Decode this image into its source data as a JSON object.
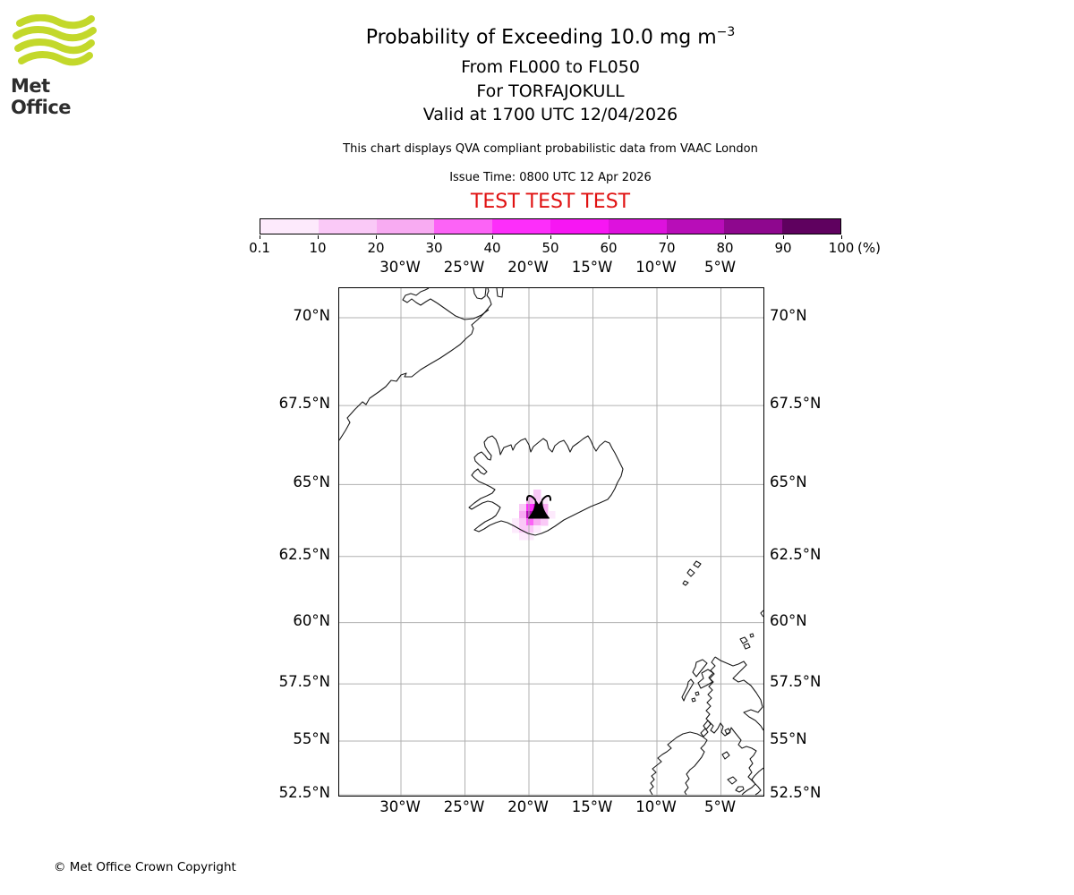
{
  "logo": {
    "brand": "Met Office",
    "green": "#c3d82b"
  },
  "header": {
    "title_main": "Probability of Exceeding 10.0 mg m",
    "title_sup": "−3",
    "sub1": "From FL000 to FL050",
    "sub2": "For TORFAJOKULL",
    "sub3": "Valid at 1700 UTC 12/04/2026",
    "note": "This chart displays QVA compliant probabilistic data from VAAC London",
    "issue_time": "Issue Time: 0800 UTC 12 Apr 2026",
    "test_banner": "TEST TEST TEST",
    "test_color": "#e01212"
  },
  "footer": {
    "copyright": "© Met Office Crown Copyright"
  },
  "chart_data": {
    "type": "heatmap",
    "title": "Probability of Exceeding 10.0 mg m-3",
    "subtitle": [
      "From FL000 to FL050",
      "For TORFAJOKULL",
      "Valid at 1700 UTC 12/04/2026"
    ],
    "legend_position": "top",
    "grid": "on",
    "colorbar": {
      "unit": "(%)",
      "ticks": [
        "0.1",
        "10",
        "20",
        "30",
        "40",
        "50",
        "60",
        "70",
        "80",
        "90",
        "100"
      ],
      "colors": [
        "#fdeafc",
        "#fac9f7",
        "#f8abf2",
        "#fc63f6",
        "#fd2efa",
        "#f716f3",
        "#dd12dd",
        "#b80db8",
        "#8e078e",
        "#5f015f"
      ]
    },
    "map": {
      "projection": "mercator",
      "lon_ticks": [
        {
          "label": "30°W",
          "value": -30
        },
        {
          "label": "25°W",
          "value": -25
        },
        {
          "label": "20°W",
          "value": -20
        },
        {
          "label": "15°W",
          "value": -15
        },
        {
          "label": "10°W",
          "value": -10
        },
        {
          "label": "5°W",
          "value": -5
        }
      ],
      "lat_ticks": [
        {
          "label": "70°N",
          "value": 70
        },
        {
          "label": "67.5°N",
          "value": 67.5
        },
        {
          "label": "65°N",
          "value": 65
        },
        {
          "label": "62.5°N",
          "value": 62.5
        },
        {
          "label": "60°N",
          "value": 60
        },
        {
          "label": "57.5°N",
          "value": 57.5
        },
        {
          "label": "55°N",
          "value": 55
        },
        {
          "label": "52.5°N",
          "value": 52.5
        }
      ],
      "gridline_color": "#b0b0b0"
    },
    "volcano": {
      "name": "TORFAJOKULL",
      "symbol": "volcano-eruption"
    },
    "plume_cells": [
      {
        "col": 3,
        "row": 0,
        "level": 1
      },
      {
        "col": 2,
        "row": 1,
        "level": 2
      },
      {
        "col": 3,
        "row": 1,
        "level": 1
      },
      {
        "col": 4,
        "row": 1,
        "level": 0
      },
      {
        "col": 1,
        "row": 2,
        "level": 1
      },
      {
        "col": 2,
        "row": 2,
        "level": 4
      },
      {
        "col": 3,
        "row": 2,
        "level": 6
      },
      {
        "col": 4,
        "row": 2,
        "level": 2
      },
      {
        "col": 1,
        "row": 3,
        "level": 2
      },
      {
        "col": 2,
        "row": 3,
        "level": 7
      },
      {
        "col": 3,
        "row": 3,
        "level": 5
      },
      {
        "col": 4,
        "row": 3,
        "level": 2
      },
      {
        "col": 5,
        "row": 3,
        "level": 0
      },
      {
        "col": 0,
        "row": 4,
        "level": 0
      },
      {
        "col": 1,
        "row": 4,
        "level": 1
      },
      {
        "col": 2,
        "row": 4,
        "level": 3
      },
      {
        "col": 3,
        "row": 4,
        "level": 2
      },
      {
        "col": 4,
        "row": 4,
        "level": 1
      },
      {
        "col": 0,
        "row": 5,
        "level": 0
      },
      {
        "col": 1,
        "row": 5,
        "level": 1
      },
      {
        "col": 2,
        "row": 5,
        "level": 1
      },
      {
        "col": 3,
        "row": 5,
        "level": 0
      },
      {
        "col": 1,
        "row": 6,
        "level": 0
      },
      {
        "col": 2,
        "row": 6,
        "level": 0
      }
    ]
  }
}
